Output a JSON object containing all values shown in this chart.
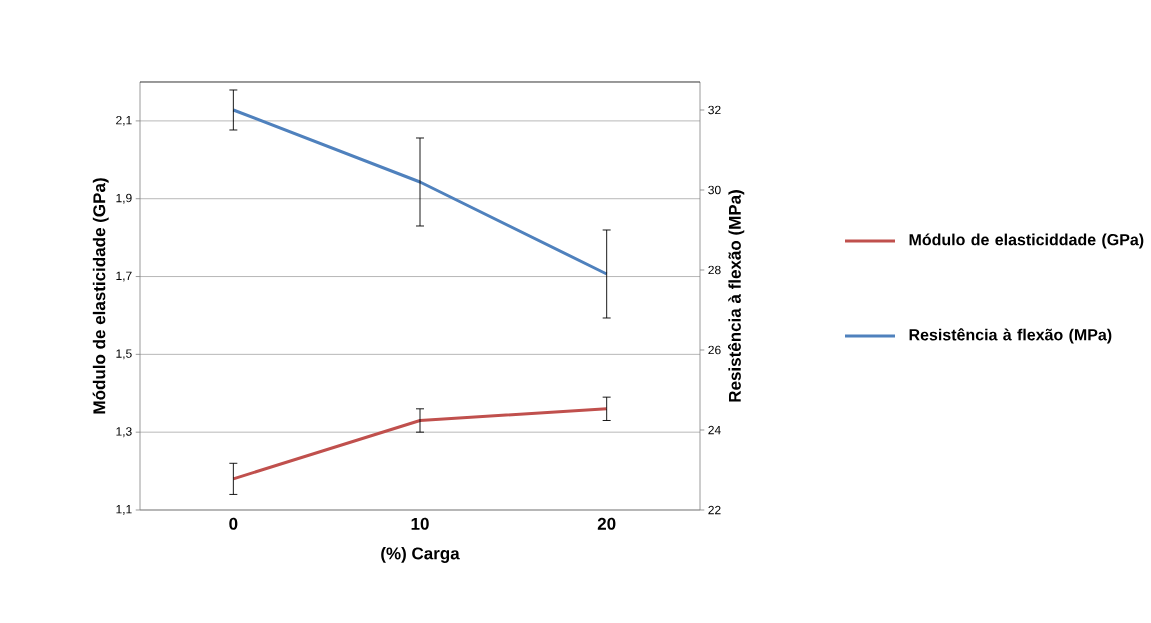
{
  "chart_data": {
    "type": "line",
    "xlabel": "(%) Carga",
    "ylabel": "Módulo de elasticidade (GPa)",
    "y2label": "Resistência à flexão (MPa)",
    "categories": [
      "0",
      "10",
      "20"
    ],
    "series": [
      {
        "name": "Módulo de elasticiddade (GPa)",
        "color": "#c0504d",
        "values": [
          1.18,
          1.33,
          1.36
        ],
        "errors": [
          0.04,
          0.03,
          0.03
        ]
      },
      {
        "name": "Resistência à flexão (MPa)",
        "color": "#4f81bd",
        "axis": "y2",
        "values": [
          32.0,
          30.2,
          27.9
        ],
        "errors": [
          0.5,
          1.1,
          1.1
        ]
      }
    ],
    "ylim": [
      1.1,
      2.2
    ],
    "yticks": [
      {
        "value": 1.1,
        "label": "1,1"
      },
      {
        "value": 1.3,
        "label": "1,3"
      },
      {
        "value": 1.5,
        "label": "1,5"
      },
      {
        "value": 1.7,
        "label": "1,7"
      },
      {
        "value": 1.9,
        "label": "1,9"
      },
      {
        "value": 2.1,
        "label": "2,1"
      }
    ],
    "y2lim": [
      22,
      32.7
    ],
    "y2ticks": [
      22,
      24,
      26,
      28,
      30,
      32
    ],
    "grid": "y",
    "legend": "right",
    "marker": "none"
  }
}
